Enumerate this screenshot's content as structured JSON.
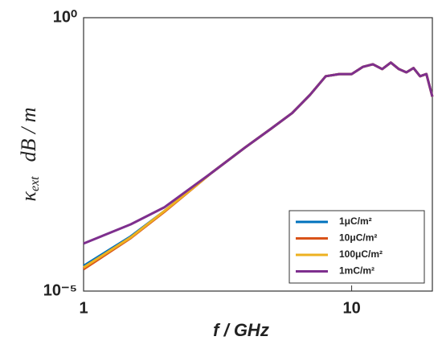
{
  "chart_data": {
    "type": "line",
    "xlabel": "f / GHz",
    "ylabel": {
      "symbol": "κ",
      "subscript": "ext",
      "unit": "dB / m"
    },
    "x": [
      1,
      1.5,
      2,
      3,
      4,
      5,
      6,
      7,
      8,
      9,
      10,
      11,
      12,
      13,
      14,
      15,
      16,
      17,
      18,
      19,
      20
    ],
    "series": [
      {
        "name": "1μC/m²",
        "color": "#0072bd",
        "values": [
          2.9e-05,
          0.0001,
          0.00029,
          0.00145,
          0.0042,
          0.0093,
          0.018,
          0.039,
          0.085,
          0.093,
          0.093,
          0.126,
          0.141,
          0.115,
          0.151,
          0.115,
          0.1,
          0.12,
          0.085,
          0.093,
          0.036
        ]
      },
      {
        "name": "10μC/m²",
        "color": "#d95319",
        "values": [
          2.5e-05,
          9.3e-05,
          0.00028,
          0.00145,
          0.0042,
          0.0093,
          0.018,
          0.039,
          0.085,
          0.093,
          0.093,
          0.126,
          0.141,
          0.115,
          0.151,
          0.115,
          0.1,
          0.12,
          0.085,
          0.093,
          0.036
        ]
      },
      {
        "name": "100μC/m²",
        "color": "#edb120",
        "values": [
          2.7e-05,
          9.6e-05,
          0.00029,
          0.00145,
          0.0042,
          0.0093,
          0.018,
          0.039,
          0.085,
          0.093,
          0.093,
          0.126,
          0.141,
          0.115,
          0.151,
          0.115,
          0.1,
          0.12,
          0.085,
          0.093,
          0.036
        ]
      },
      {
        "name": "1mC/m²",
        "color": "#7e2f8e",
        "values": [
          7.4e-05,
          0.000166,
          0.00034,
          0.00145,
          0.0042,
          0.0093,
          0.018,
          0.039,
          0.085,
          0.093,
          0.093,
          0.126,
          0.141,
          0.115,
          0.151,
          0.115,
          0.1,
          0.12,
          0.085,
          0.093,
          0.036
        ]
      }
    ],
    "xlim": [
      1,
      20
    ],
    "ylim": [
      1e-05,
      1
    ],
    "xticks": [
      1,
      10
    ],
    "yticks": [
      {
        "value": 1e-05,
        "label": "10⁻⁵"
      },
      {
        "value": 1,
        "label": "10⁰"
      }
    ],
    "xscale": "log",
    "yscale": "log",
    "grid": false,
    "legend": "lower right"
  }
}
